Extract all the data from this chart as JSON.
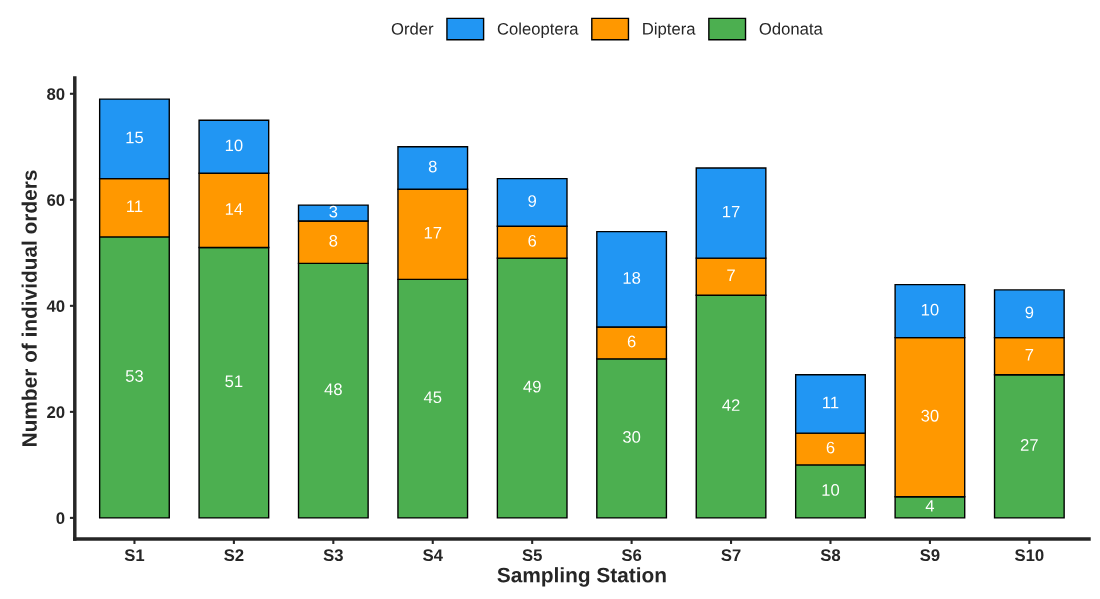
{
  "chart_data": {
    "type": "bar",
    "stacked": true,
    "xlabel": "Sampling Station",
    "ylabel": "Number of individual orders",
    "legend_title": "Order",
    "legend": "top",
    "data_labels": true,
    "grid": false,
    "categories": [
      "S1",
      "S2",
      "S3",
      "S4",
      "S5",
      "S6",
      "S7",
      "S8",
      "S9",
      "S10"
    ],
    "series": [
      {
        "name": "Odonata",
        "color": "#4caf50",
        "values": [
          53,
          51,
          48,
          45,
          49,
          30,
          42,
          10,
          4,
          27
        ]
      },
      {
        "name": "Diptera",
        "color": "#ff9800",
        "values": [
          11,
          14,
          8,
          17,
          6,
          6,
          7,
          6,
          30,
          7
        ]
      },
      {
        "name": "Coleoptera",
        "color": "#2196f3",
        "values": [
          15,
          10,
          3,
          8,
          9,
          18,
          17,
          11,
          10,
          9
        ]
      }
    ],
    "ylim": [
      -4,
      83
    ],
    "yticks": [
      0,
      20,
      40,
      60,
      80
    ]
  }
}
